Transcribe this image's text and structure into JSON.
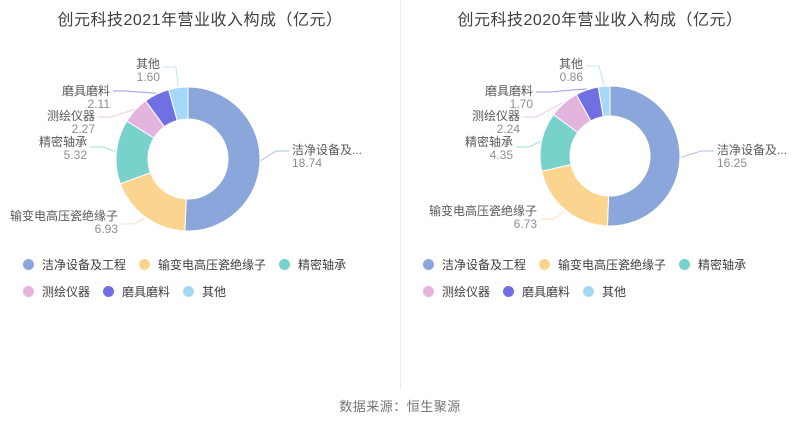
{
  "chart_data": [
    {
      "type": "pie",
      "subtype": "donut",
      "title": "创元科技2021年营业收入构成（亿元）",
      "unit": "亿元",
      "categories": [
        "洁净设备及工程",
        "输变电高压瓷绝缘子",
        "精密轴承",
        "测绘仪器",
        "磨具磨料",
        "其他"
      ],
      "display_labels": [
        "洁净设备及...",
        "输变电高压瓷绝缘子",
        "精密轴承",
        "测绘仪器",
        "磨具磨料",
        "其他"
      ],
      "values": [
        18.74,
        6.93,
        5.32,
        2.27,
        2.11,
        1.6
      ],
      "colors": [
        "#8BA6DA",
        "#FBD58F",
        "#79D1CB",
        "#E2B4DE",
        "#7170E2",
        "#A6D9F7"
      ],
      "legend_position": "bottom",
      "start_angle_deg": 0,
      "direction": "clockwise"
    },
    {
      "type": "pie",
      "subtype": "donut",
      "title": "创元科技2020年营业收入构成（亿元）",
      "unit": "亿元",
      "categories": [
        "洁净设备及工程",
        "输变电高压瓷绝缘子",
        "精密轴承",
        "测绘仪器",
        "磨具磨料",
        "其他"
      ],
      "display_labels": [
        "洁净设备及...",
        "输变电高压瓷绝缘子",
        "精密轴承",
        "测绘仪器",
        "磨具磨料",
        "其他"
      ],
      "values": [
        16.25,
        6.73,
        4.35,
        2.24,
        1.7,
        0.86
      ],
      "colors": [
        "#8BA6DA",
        "#FBD58F",
        "#79D1CB",
        "#E2B4DE",
        "#7170E2",
        "#A6D9F7"
      ],
      "legend_position": "bottom",
      "start_angle_deg": 0,
      "direction": "clockwise"
    }
  ],
  "legend": {
    "items": [
      {
        "label": "洁净设备及工程",
        "color": "#8BA6DA"
      },
      {
        "label": "输变电高压瓷绝缘子",
        "color": "#FBD58F"
      },
      {
        "label": "精密轴承",
        "color": "#79D1CB"
      },
      {
        "label": "测绘仪器",
        "color": "#E2B4DE"
      },
      {
        "label": "磨具磨料",
        "color": "#7170E2"
      },
      {
        "label": "其他",
        "color": "#A6D9F7"
      }
    ]
  },
  "footer": {
    "source_note": "数据来源：恒生聚源"
  }
}
